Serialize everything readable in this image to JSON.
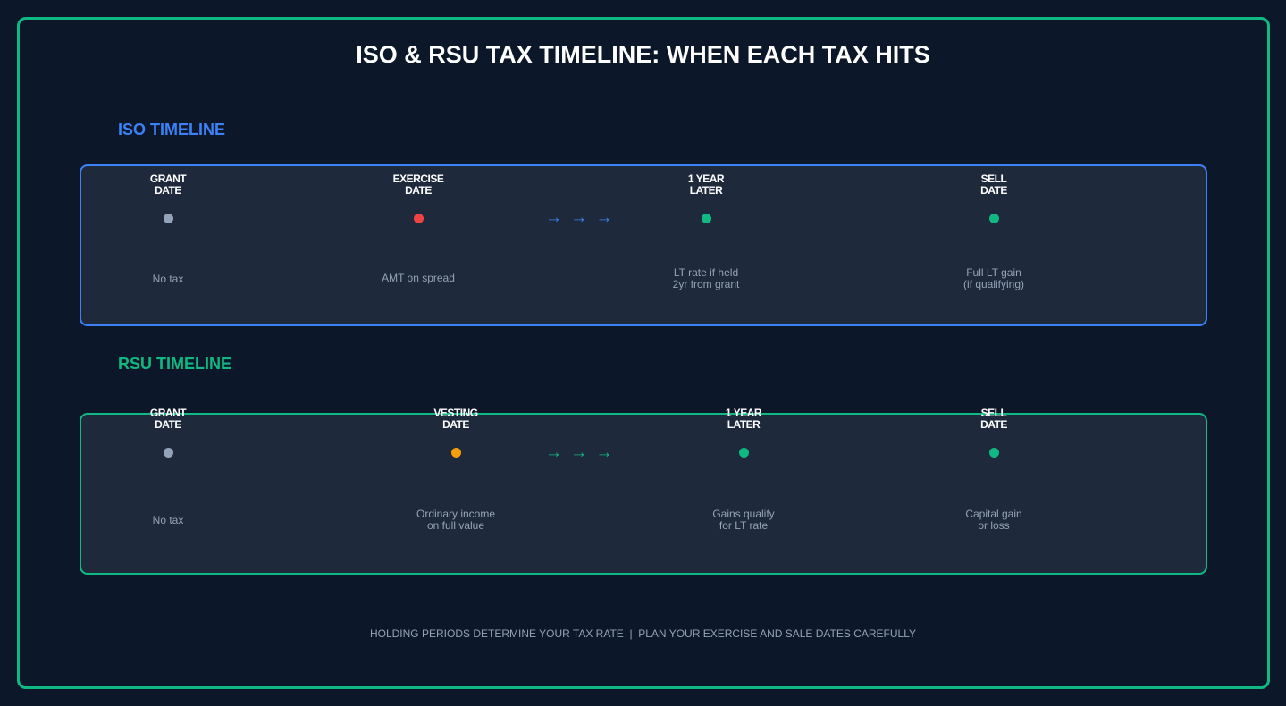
{
  "title": "ISO & RSU TAX TIMELINE: WHEN EACH TAX HITS",
  "colors": {
    "background": "#0d172a",
    "frame": "#10b981",
    "panel": "#1e293b",
    "iso_accent": "#3b82f6",
    "rsu_accent": "#10b981",
    "muted_text": "#94a3b8",
    "gray_dot": "#94a3b8",
    "red_dot": "#ef4444",
    "green_dot": "#10b981",
    "orange_dot": "#f59e0b"
  },
  "iso": {
    "label": "ISO TIMELINE",
    "arrows": "→ → →",
    "nodes": [
      {
        "head": "GRANT\nDATE",
        "desc": "No tax",
        "dot_color": "#94a3b8"
      },
      {
        "head": "EXERCISE\nDATE",
        "desc": "AMT on spread",
        "dot_color": "#ef4444"
      },
      {
        "head": "1 YEAR\nLATER",
        "desc": "LT rate if held\n2yr from grant",
        "dot_color": "#10b981"
      },
      {
        "head": "SELL\nDATE",
        "desc": "Full LT gain\n(if qualifying)",
        "dot_color": "#10b981"
      }
    ]
  },
  "rsu": {
    "label": "RSU TIMELINE",
    "arrows": "→ → →",
    "nodes": [
      {
        "head": "GRANT\nDATE",
        "desc": "No tax",
        "dot_color": "#94a3b8"
      },
      {
        "head": "VESTING\nDATE",
        "desc": "Ordinary income\non full value",
        "dot_color": "#f59e0b"
      },
      {
        "head": "1 YEAR\nLATER",
        "desc": "Gains qualify\nfor LT rate",
        "dot_color": "#10b981"
      },
      {
        "head": "SELL\nDATE",
        "desc": "Capital gain\nor loss",
        "dot_color": "#10b981"
      }
    ]
  },
  "footer": "HOLDING PERIODS DETERMINE YOUR TAX RATE  |  PLAN YOUR EXERCISE AND SALE DATES CAREFULLY"
}
